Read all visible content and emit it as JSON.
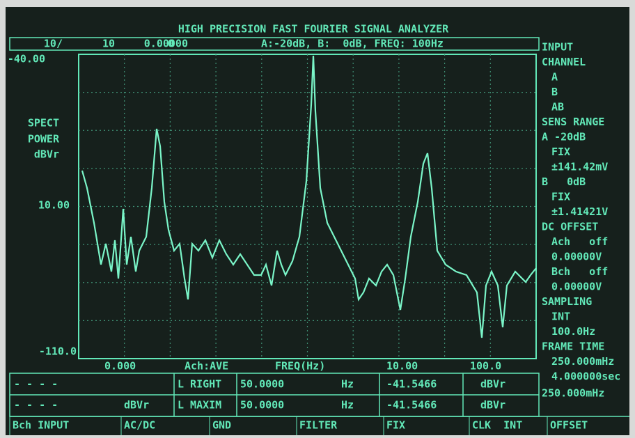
{
  "header": {
    "title": "HIGH PRECISION FAST FOURIER SIGNAL ANALYZER"
  },
  "status": [
    "10/",
    "10",
    "0",
    "0.00000",
    "A:-20dB, B:  0dB, FREQ: 100Hz"
  ],
  "y_labels": [
    "-40.00",
    "SPECT",
    "POWER",
    "dBVr",
    "10.00",
    "-110.0"
  ],
  "x_labels": [
    "0.000",
    "Ach:AVE",
    "FREQ(Hz)",
    "10.00",
    "100.0"
  ],
  "sidebar": [
    "INPUT",
    "CHANNEL",
    "A",
    "B",
    "AB",
    "SENS RANGE",
    "A -20dB",
    "FIX",
    "±141.42mV",
    "B   0dB",
    "FIX",
    "±1.41421V",
    "DC OFFSET",
    "Ach   off",
    "0.00000V",
    "Bch   off",
    "0.00000V",
    "SAMPLING",
    "INT",
    "100.0Hz",
    "FRAME TIME",
    "250.000mHz",
    "4.000000sec"
  ],
  "table": {
    "rows": [
      [
        "- - - -",
        "L RIGHT",
        "50.0000",
        "Hz",
        "-41.5466",
        "dBVr"
      ],
      [
        "- - - -",
        "dBVr",
        "L MAXIM",
        "50.0000",
        "Hz",
        "-41.5466",
        "dBVr"
      ]
    ]
  },
  "softkeys": [
    "Bch INPUT",
    "AC/DC",
    "GND",
    "FILTER",
    "FIX",
    "CLK  INT",
    "OFFSET"
  ]
}
